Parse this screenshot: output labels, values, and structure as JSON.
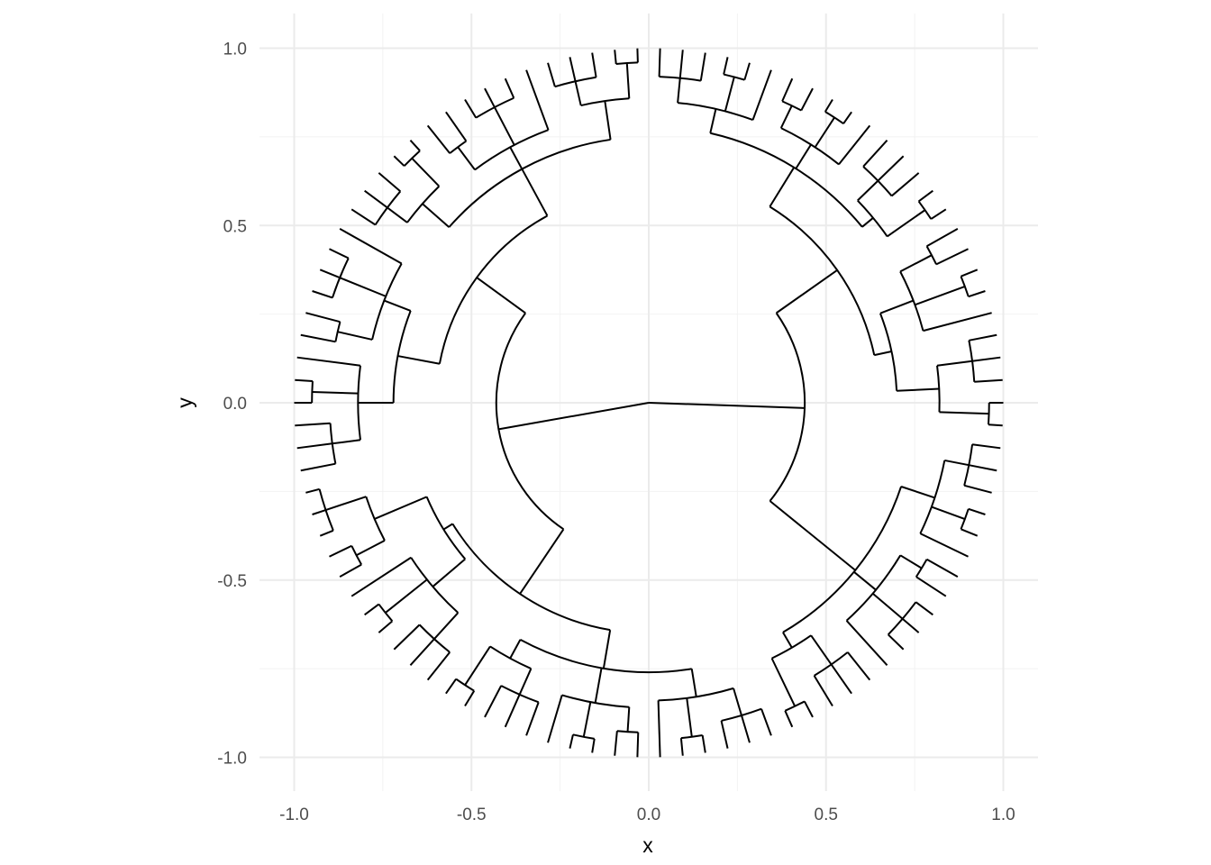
{
  "chart_data": {
    "type": "dendrogram",
    "layout": "circular",
    "xlabel": "x",
    "ylabel": "y",
    "xlim": [
      -1.0,
      1.0
    ],
    "ylim": [
      -1.0,
      1.0
    ],
    "x_ticks": [
      "-1.0",
      "-0.5",
      "0.0",
      "0.5",
      "1.0"
    ],
    "y_ticks": [
      "-1.0",
      "-0.5",
      "0.0",
      "0.5",
      "1.0"
    ],
    "grid": true,
    "legend": "none",
    "line_color": "#000000",
    "root": [
      0,
      0
    ],
    "tree": {
      "r": 0,
      "children": [
        {
          "r": 0.44,
          "children": [
            {
              "r": 0.65,
              "children": [
                {
                  "r": 0.78,
                  "children": [
                    {
                      "r": 0.85,
                      "children": [
                        {
                          "r": 0.92,
                          "children": [
                            {
                              "r": 1
                            },
                            {
                              "r": 1
                            },
                            {
                              "r": 1
                            }
                          ]
                        },
                        {
                          "r": 0.95,
                          "children": [
                            {
                              "r": 1
                            },
                            {
                              "r": 1
                            }
                          ]
                        },
                        {
                          "r": 1
                        }
                      ]
                    },
                    {
                      "r": 0.86,
                      "children": [
                        {
                          "r": 0.93,
                          "children": [
                            {
                              "r": 1
                            },
                            {
                              "r": 1
                            }
                          ]
                        },
                        {
                          "r": 0.96,
                          "children": [
                            {
                              "r": 1
                            },
                            {
                              "r": 1
                            }
                          ]
                        },
                        {
                          "r": 1
                        }
                      ]
                    },
                    {
                      "r": 0.82,
                      "children": [
                        {
                          "r": 0.9,
                          "children": [
                            {
                              "r": 1
                            },
                            {
                              "r": 1
                            },
                            {
                              "r": 1
                            }
                          ]
                        },
                        {
                          "r": 0.95,
                          "children": [
                            {
                              "r": 1
                            },
                            {
                              "r": 1
                            }
                          ]
                        }
                      ]
                    }
                  ]
                },
                {
                  "r": 0.7,
                  "children": [
                    {
                      "r": 0.8,
                      "children": [
                        {
                          "r": 0.9,
                          "children": [
                            {
                              "r": 1
                            },
                            {
                              "r": 1
                            }
                          ]
                        },
                        {
                          "r": 0.95,
                          "children": [
                            {
                              "r": 1
                            },
                            {
                              "r": 1
                            }
                          ]
                        },
                        {
                          "r": 1
                        }
                      ]
                    },
                    {
                      "r": 0.82,
                      "children": [
                        {
                          "r": 0.92,
                          "children": [
                            {
                              "r": 1
                            },
                            {
                              "r": 1
                            },
                            {
                              "r": 1
                            }
                          ]
                        },
                        {
                          "r": 0.96,
                          "children": [
                            {
                              "r": 1
                            },
                            {
                              "r": 1
                            }
                          ]
                        }
                      ]
                    }
                  ]
                }
              ]
            },
            {
              "r": 0.75,
              "children": [
                {
                  "r": 0.85,
                  "children": [
                    {
                      "r": 0.92,
                      "children": [
                        {
                          "r": 1
                        },
                        {
                          "r": 1
                        },
                        {
                          "r": 1
                        }
                      ]
                    },
                    {
                      "r": 0.95,
                      "children": [
                        {
                          "r": 1
                        },
                        {
                          "r": 1
                        }
                      ]
                    },
                    {
                      "r": 1
                    }
                  ]
                },
                {
                  "r": 0.83,
                  "children": [
                    {
                      "r": 0.9,
                      "children": [
                        {
                          "r": 1
                        },
                        {
                          "r": 1
                        }
                      ]
                    },
                    {
                      "r": 0.94,
                      "children": [
                        {
                          "r": 1
                        },
                        {
                          "r": 1
                        },
                        {
                          "r": 1
                        }
                      ]
                    },
                    {
                      "r": 1
                    }
                  ]
                },
                {
                  "r": 0.8,
                  "children": [
                    {
                      "r": 0.9,
                      "children": [
                        {
                          "r": 1
                        },
                        {
                          "r": 1
                        },
                        {
                          "r": 1
                        }
                      ]
                    },
                    {
                      "r": 0.95,
                      "children": [
                        {
                          "r": 1
                        },
                        {
                          "r": 1
                        }
                      ]
                    }
                  ]
                }
              ]
            }
          ]
        },
        {
          "r": 0.43,
          "children": [
            {
              "r": 0.65,
              "children": [
                {
                  "r": 0.76,
                  "children": [
                    {
                      "r": 0.84,
                      "children": [
                        {
                          "r": 0.92,
                          "children": [
                            {
                              "r": 1
                            },
                            {
                              "r": 1
                            },
                            {
                              "r": 1
                            }
                          ]
                        },
                        {
                          "r": 0.95,
                          "children": [
                            {
                              "r": 1
                            },
                            {
                              "r": 1
                            }
                          ]
                        },
                        {
                          "r": 1
                        }
                      ]
                    },
                    {
                      "r": 0.86,
                      "children": [
                        {
                          "r": 0.93,
                          "children": [
                            {
                              "r": 1
                            },
                            {
                              "r": 1
                            }
                          ]
                        },
                        {
                          "r": 0.96,
                          "children": [
                            {
                              "r": 1
                            },
                            {
                              "r": 1
                            }
                          ]
                        },
                        {
                          "r": 1
                        }
                      ]
                    },
                    {
                      "r": 0.82,
                      "children": [
                        {
                          "r": 0.9,
                          "children": [
                            {
                              "r": 1
                            },
                            {
                              "r": 1
                            },
                            {
                              "r": 1
                            }
                          ]
                        },
                        {
                          "r": 0.95,
                          "children": [
                            {
                              "r": 1
                            },
                            {
                              "r": 1
                            }
                          ]
                        }
                      ]
                    }
                  ]
                },
                {
                  "r": 0.68,
                  "children": [
                    {
                      "r": 0.8,
                      "children": [
                        {
                          "r": 0.9,
                          "children": [
                            {
                              "r": 1
                            },
                            {
                              "r": 1
                            },
                            {
                              "r": 1
                            }
                          ]
                        },
                        {
                          "r": 0.95,
                          "children": [
                            {
                              "r": 1
                            },
                            {
                              "r": 1
                            }
                          ]
                        },
                        {
                          "r": 1
                        }
                      ]
                    },
                    {
                      "r": 0.84,
                      "children": [
                        {
                          "r": 0.93,
                          "children": [
                            {
                              "r": 1
                            },
                            {
                              "r": 1
                            }
                          ]
                        },
                        {
                          "r": 0.96,
                          "children": [
                            {
                              "r": 1
                            },
                            {
                              "r": 1
                            },
                            {
                              "r": 1
                            }
                          ]
                        }
                      ]
                    }
                  ]
                }
              ]
            },
            {
              "r": 0.6,
              "children": [
                {
                  "r": 0.72,
                  "children": [
                    {
                      "r": 0.82,
                      "children": [
                        {
                          "r": 0.9,
                          "children": [
                            {
                              "r": 1
                            },
                            {
                              "r": 1
                            },
                            {
                              "r": 1
                            }
                          ]
                        },
                        {
                          "r": 0.95,
                          "children": [
                            {
                              "r": 1
                            },
                            {
                              "r": 1
                            }
                          ]
                        },
                        {
                          "r": 1
                        }
                      ]
                    },
                    {
                      "r": 0.8,
                      "children": [
                        {
                          "r": 0.9,
                          "children": [
                            {
                              "r": 1
                            },
                            {
                              "r": 1
                            }
                          ]
                        },
                        {
                          "r": 0.94,
                          "children": [
                            {
                              "r": 1
                            },
                            {
                              "r": 1
                            },
                            {
                              "r": 1
                            }
                          ]
                        },
                        {
                          "r": 1
                        }
                      ]
                    }
                  ]
                },
                {
                  "r": 0.75,
                  "children": [
                    {
                      "r": 0.85,
                      "children": [
                        {
                          "r": 0.92,
                          "children": [
                            {
                              "r": 1
                            },
                            {
                              "r": 1
                            },
                            {
                              "r": 1
                            }
                          ]
                        },
                        {
                          "r": 0.96,
                          "children": [
                            {
                              "r": 1
                            },
                            {
                              "r": 1
                            }
                          ]
                        }
                      ]
                    },
                    {
                      "r": 0.82,
                      "children": [
                        {
                          "r": 0.9,
                          "children": [
                            {
                              "r": 1
                            },
                            {
                              "r": 1
                            }
                          ]
                        },
                        {
                          "r": 0.94,
                          "children": [
                            {
                              "r": 1
                            },
                            {
                              "r": 1
                            },
                            {
                              "r": 1
                            }
                          ]
                        },
                        {
                          "r": 1
                        }
                      ]
                    },
                    {
                      "r": 0.86,
                      "children": [
                        {
                          "r": 0.93,
                          "children": [
                            {
                              "r": 1
                            },
                            {
                              "r": 1
                            },
                            {
                              "r": 1
                            }
                          ]
                        },
                        {
                          "r": 0.96,
                          "children": [
                            {
                              "r": 1
                            },
                            {
                              "r": 1
                            }
                          ]
                        }
                      ]
                    }
                  ]
                }
              ]
            }
          ]
        }
      ]
    }
  }
}
